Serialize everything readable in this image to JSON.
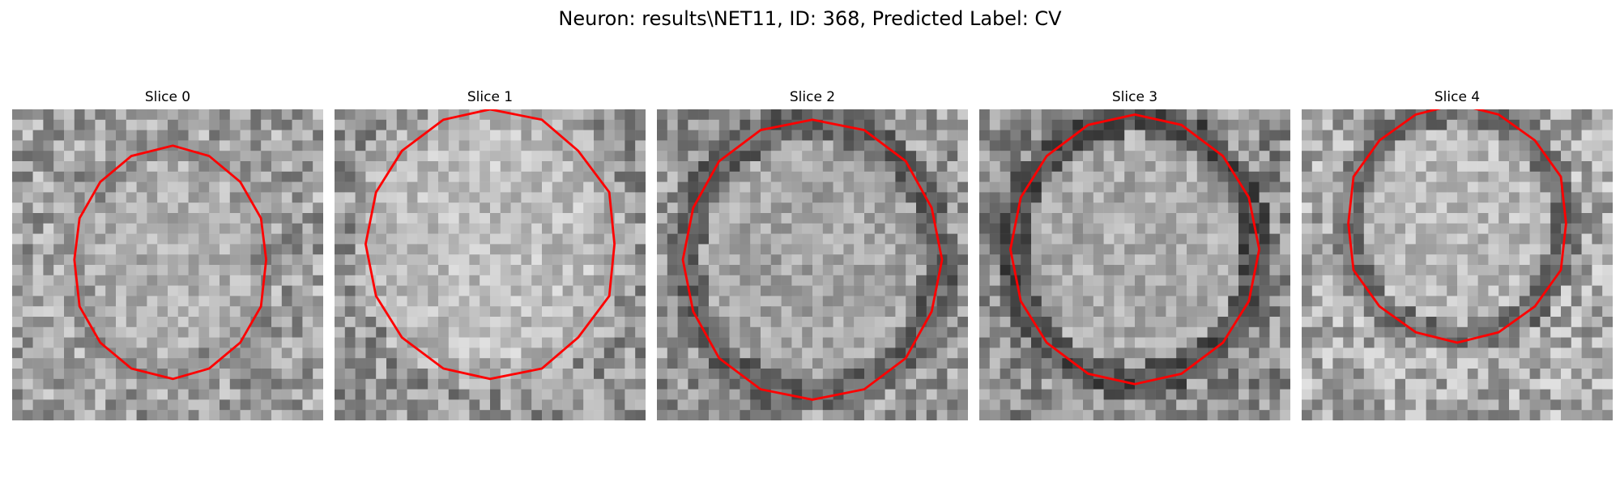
{
  "figure": {
    "title": "Neuron: results\\NET11, ID: 368, Predicted Label: CV"
  },
  "panels": [
    {
      "title": "Slice 0"
    },
    {
      "title": "Slice 1"
    },
    {
      "title": "Slice 2"
    },
    {
      "title": "Slice 3"
    },
    {
      "title": "Slice 4"
    }
  ],
  "colors": {
    "contour": "#ff0000",
    "background": "#ffffff",
    "image_colormap": "grayscale"
  }
}
